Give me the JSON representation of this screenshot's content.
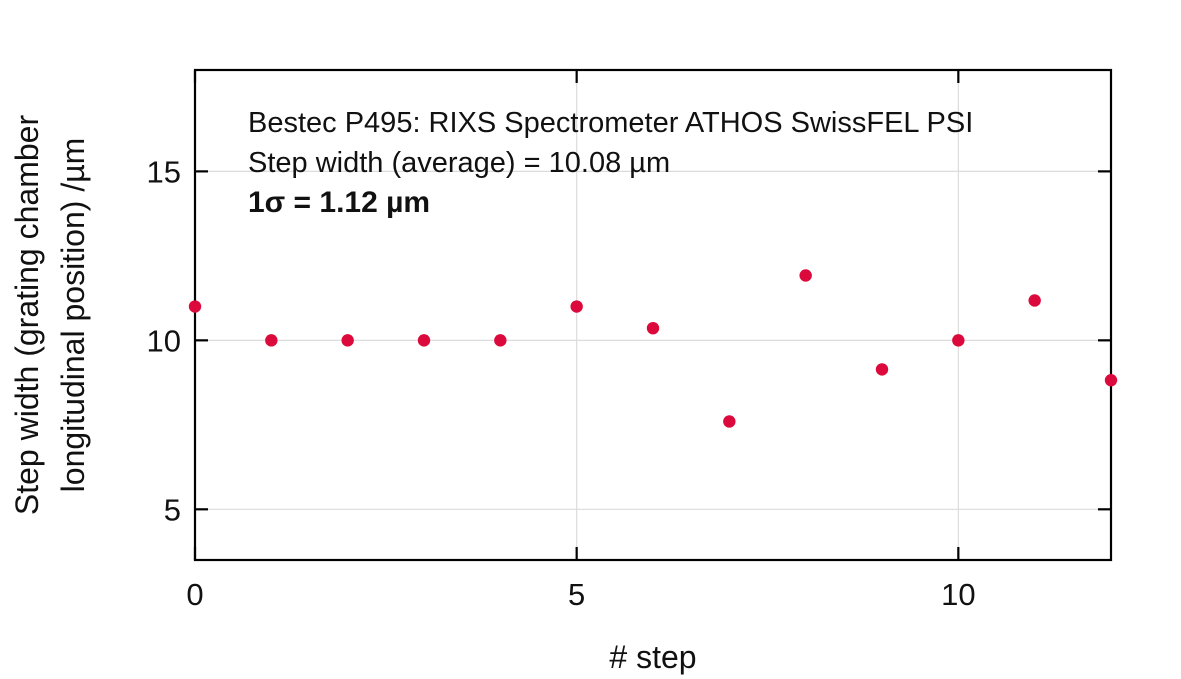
{
  "chart_data": {
    "type": "scatter",
    "title": "",
    "xlabel": "# step",
    "ylabel_lines": [
      "Step width (grating chamber",
      "longitudinal position) /µm"
    ],
    "ylabel": "Step width (grating chamber longitudinal position) /µm",
    "xlim": [
      0,
      12
    ],
    "ylim": [
      3.5,
      18
    ],
    "xticks": [
      0,
      5,
      10
    ],
    "yticks": [
      5,
      10,
      15
    ],
    "grid": true,
    "legend": null,
    "marker_color": "#DC0A3C",
    "annotations": [
      "Bestec P495: RIXS Spectrometer ATHOS SwissFEL PSI",
      "Step width (average) = 10.08 µm",
      "1σ = 1.12 µm"
    ],
    "series": [
      {
        "name": "step width",
        "x": [
          0,
          1,
          2,
          3,
          4,
          5,
          6,
          7,
          8,
          9,
          10,
          11,
          12
        ],
        "y": [
          11.0,
          10.0,
          10.0,
          10.0,
          10.0,
          11.0,
          10.36,
          7.6,
          11.92,
          9.14,
          10.0,
          11.18,
          8.82
        ]
      }
    ]
  },
  "annotation": {
    "line1": "Bestec P495: RIXS Spectrometer ATHOS SwissFEL PSI",
    "line2": "Step width (average) = 10.08 µm",
    "line3": "1σ = 1.12 µm"
  },
  "axes": {
    "xlabel": "# step",
    "ylabel_line1": "Step width (grating chamber",
    "ylabel_line2": "longitudinal position) /µm"
  }
}
